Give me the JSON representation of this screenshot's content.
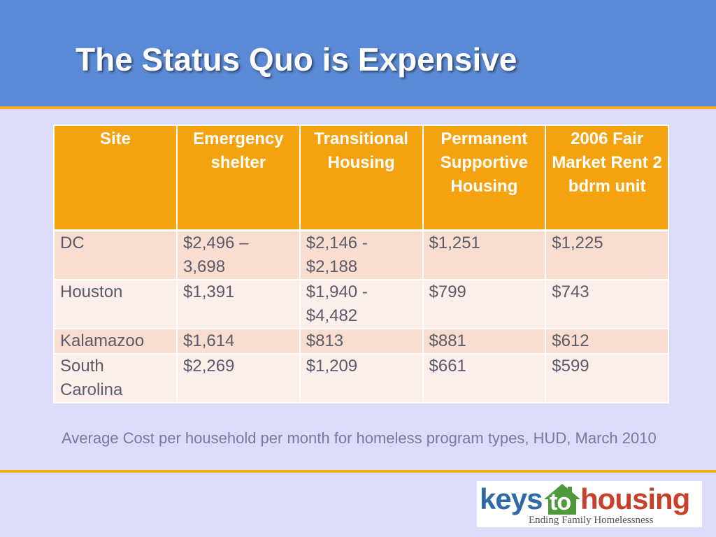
{
  "title": "The Status Quo is Expensive",
  "table": {
    "headers": [
      "Site",
      "Emergency shelter",
      "Transitional Housing",
      "Permanent Supportive Housing",
      "2006 Fair Market Rent 2 bdrm unit"
    ],
    "rows": [
      [
        "DC",
        "$2,496 – 3,698",
        "$2,146 - $2,188",
        "$1,251",
        "$1,225"
      ],
      [
        "Houston",
        "$1,391",
        "$1,940 - $4,482",
        "$799",
        "$743"
      ],
      [
        "Kalamazoo",
        "$1,614",
        "$813",
        "$881",
        "$612"
      ],
      [
        "South Carolina",
        "$2,269",
        "$1,209",
        "$661",
        "$599"
      ]
    ]
  },
  "caption": "Average Cost per household per month for homeless program types, HUD, March 2010",
  "logo": {
    "word_keys": "keys",
    "word_to": "to",
    "word_housing": "housing",
    "tagline": "Ending Family Homelessness"
  },
  "colors": {
    "header_bg": "#5a8ad6",
    "accent_orange": "#f4a81c",
    "slide_bg": "#dcdcfa"
  }
}
